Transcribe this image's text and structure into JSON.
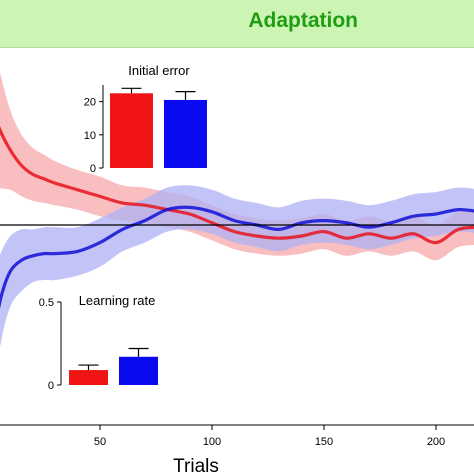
{
  "header": {
    "title": "Adaptation",
    "bg_color": "#ccf5b4",
    "title_color": "#1f9d14"
  },
  "chart_data": [
    {
      "type": "line",
      "xlabel": "Trials",
      "ylabel": "",
      "xlim": [
        0,
        220
      ],
      "ylim": [
        -1,
        1
      ],
      "xticks": [
        50,
        100,
        150,
        200
      ],
      "reference_line": 0,
      "series": [
        {
          "color": "#e8141c",
          "band_color": "#f7a8ab",
          "x": [
            0,
            5,
            10,
            15,
            20,
            25,
            30,
            40,
            50,
            60,
            70,
            80,
            90,
            100,
            110,
            120,
            130,
            140,
            150,
            160,
            170,
            180,
            190,
            200,
            210,
            220
          ],
          "y": [
            0.59,
            0.44,
            0.34,
            0.27,
            0.23,
            0.21,
            0.19,
            0.16,
            0.13,
            0.1,
            0.09,
            0.07,
            0.05,
            0.01,
            -0.03,
            -0.05,
            -0.06,
            -0.05,
            -0.03,
            -0.06,
            -0.04,
            -0.06,
            -0.04,
            -0.08,
            -0.02,
            -0.01
          ],
          "err": [
            0.38,
            0.27,
            0.18,
            0.14,
            0.12,
            0.11,
            0.1,
            0.09,
            0.09,
            0.08,
            0.08,
            0.08,
            0.08,
            0.08,
            0.08,
            0.08,
            0.08,
            0.08,
            0.08,
            0.08,
            0.08,
            0.08,
            0.08,
            0.08,
            0.08,
            0.08
          ]
        },
        {
          "color": "#1010d6",
          "band_color": "#aeb0f4",
          "x": [
            0,
            3,
            6,
            10,
            15,
            20,
            25,
            30,
            40,
            50,
            60,
            70,
            80,
            90,
            100,
            110,
            120,
            130,
            140,
            150,
            160,
            170,
            180,
            190,
            200,
            210,
            220
          ],
          "y": [
            -0.67,
            -0.47,
            -0.32,
            -0.21,
            -0.16,
            -0.14,
            -0.13,
            -0.13,
            -0.12,
            -0.08,
            -0.02,
            0.02,
            0.07,
            0.08,
            0.06,
            0.02,
            0,
            -0.02,
            0.01,
            0.02,
            0.01,
            -0.01,
            0.01,
            0.04,
            0.05,
            0.07,
            0.06
          ],
          "err": [
            0.32,
            0.26,
            0.2,
            0.16,
            0.14,
            0.12,
            0.12,
            0.12,
            0.11,
            0.11,
            0.1,
            0.1,
            0.1,
            0.1,
            0.1,
            0.1,
            0.1,
            0.1,
            0.1,
            0.1,
            0.1,
            0.1,
            0.1,
            0.1,
            0.1,
            0.1,
            0.1
          ]
        }
      ]
    },
    {
      "type": "bar",
      "title": "Initial error",
      "ylim": [
        0,
        25
      ],
      "yticks": [
        0,
        10,
        20
      ],
      "values": [
        22.5,
        20.5
      ],
      "errors": [
        1.5,
        2.5
      ],
      "colors": [
        "#f01414",
        "#0a0af0"
      ]
    },
    {
      "type": "bar",
      "title": "Learning rate",
      "ylim": [
        0,
        0.5
      ],
      "yticks": [
        0,
        0.5
      ],
      "values": [
        0.09,
        0.17
      ],
      "errors": [
        0.03,
        0.05
      ],
      "colors": [
        "#f01414",
        "#0a0af0"
      ]
    }
  ]
}
